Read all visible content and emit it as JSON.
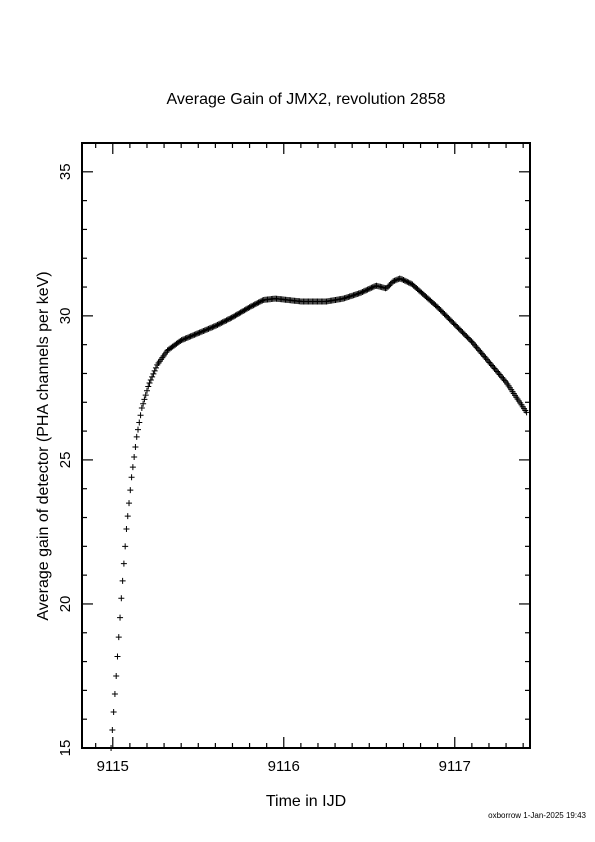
{
  "chart_data": {
    "type": "scatter",
    "title": "Average Gain of JMX2, revolution 2858",
    "xlabel": "Time in IJD",
    "ylabel": "Average gain of detector (PHA channels per keV)",
    "xlim": [
      9114.82,
      9117.44
    ],
    "ylim": [
      15,
      36
    ],
    "x_ticks": [
      9115,
      9116,
      9117
    ],
    "x_tick_labels": [
      "9115",
      "9116",
      "9117"
    ],
    "y_ticks": [
      15,
      20,
      25,
      30,
      35
    ],
    "y_tick_labels": [
      "15",
      "20",
      "25",
      "30",
      "35"
    ],
    "grid": false,
    "legend": "none",
    "marker": "plus",
    "color": "#000000",
    "curve_points": [
      {
        "x": 9114.99,
        "y": 15.0
      },
      {
        "x": 9115.02,
        "y": 17.5
      },
      {
        "x": 9115.05,
        "y": 20.2
      },
      {
        "x": 9115.08,
        "y": 22.6
      },
      {
        "x": 9115.11,
        "y": 24.4
      },
      {
        "x": 9115.14,
        "y": 25.8
      },
      {
        "x": 9115.17,
        "y": 26.8
      },
      {
        "x": 9115.21,
        "y": 27.6
      },
      {
        "x": 9115.26,
        "y": 28.3
      },
      {
        "x": 9115.32,
        "y": 28.8
      },
      {
        "x": 9115.4,
        "y": 29.15
      },
      {
        "x": 9115.5,
        "y": 29.4
      },
      {
        "x": 9115.6,
        "y": 29.65
      },
      {
        "x": 9115.7,
        "y": 29.95
      },
      {
        "x": 9115.8,
        "y": 30.3
      },
      {
        "x": 9115.88,
        "y": 30.55
      },
      {
        "x": 9115.95,
        "y": 30.6
      },
      {
        "x": 9116.1,
        "y": 30.5
      },
      {
        "x": 9116.25,
        "y": 30.5
      },
      {
        "x": 9116.35,
        "y": 30.6
      },
      {
        "x": 9116.45,
        "y": 30.8
      },
      {
        "x": 9116.54,
        "y": 31.05
      },
      {
        "x": 9116.6,
        "y": 30.95
      },
      {
        "x": 9116.64,
        "y": 31.2
      },
      {
        "x": 9116.68,
        "y": 31.3
      },
      {
        "x": 9116.75,
        "y": 31.1
      },
      {
        "x": 9116.9,
        "y": 30.3
      },
      {
        "x": 9117.1,
        "y": 29.1
      },
      {
        "x": 9117.3,
        "y": 27.7
      },
      {
        "x": 9117.42,
        "y": 26.65
      }
    ]
  },
  "footer_stamp": "oxborrow  1-Jan-2025 19:43"
}
